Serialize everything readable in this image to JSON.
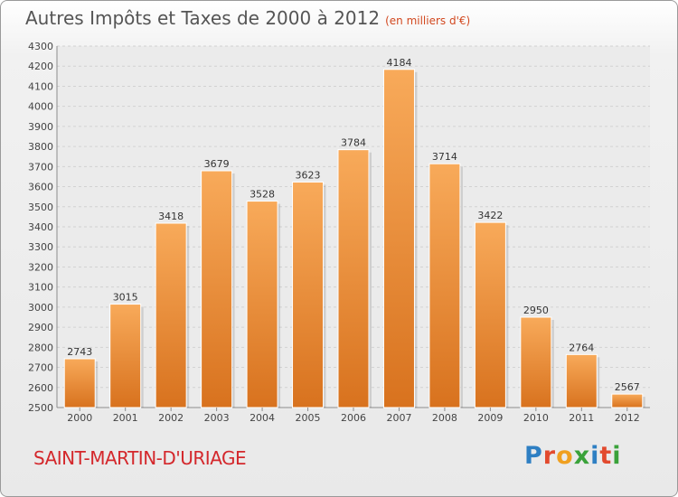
{
  "title": "Autres Impôts et Taxes de 2000 à 2012",
  "subtitle": "(en milliers d'€)",
  "place": "SAINT-MARTIN-D'URIAGE",
  "logo": {
    "letters": [
      "P",
      "r",
      "o",
      "x",
      "i",
      "t",
      "i"
    ],
    "colors": [
      "#2e7fc3",
      "#e24a2e",
      "#f0a020",
      "#3aa23a",
      "#2e7fc3",
      "#e24a2e",
      "#3aa23a"
    ]
  },
  "chart_data": {
    "type": "bar",
    "title": "Autres Impôts et Taxes de 2000 à 2012",
    "subtitle": "(en milliers d'€)",
    "categories": [
      "2000",
      "2001",
      "2002",
      "2003",
      "2004",
      "2005",
      "2006",
      "2007",
      "2008",
      "2009",
      "2010",
      "2011",
      "2012"
    ],
    "values": [
      2743,
      3015,
      3418,
      3679,
      3528,
      3623,
      3784,
      4184,
      3714,
      3422,
      2950,
      2764,
      2567
    ],
    "ylim": [
      2500,
      4300
    ],
    "yticks": [
      2500,
      2600,
      2700,
      2800,
      2900,
      3000,
      3100,
      3200,
      3300,
      3400,
      3500,
      3600,
      3700,
      3800,
      3900,
      4000,
      4100,
      4200,
      4300
    ],
    "grid": true,
    "colors": {
      "bar_top": "#f8aa5a",
      "bar_bottom": "#d8721e",
      "grid": "#d2d2d2",
      "axis": "#8c8c8c"
    }
  }
}
